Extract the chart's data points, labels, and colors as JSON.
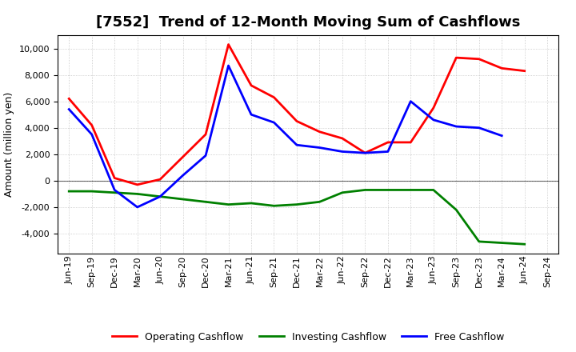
{
  "title": "[7552]  Trend of 12-Month Moving Sum of Cashflows",
  "ylabel": "Amount (million yen)",
  "x_labels": [
    "Jun-19",
    "Sep-19",
    "Dec-19",
    "Mar-20",
    "Jun-20",
    "Sep-20",
    "Dec-20",
    "Mar-21",
    "Jun-21",
    "Sep-21",
    "Dec-21",
    "Mar-22",
    "Jun-22",
    "Sep-22",
    "Dec-22",
    "Mar-23",
    "Jun-23",
    "Sep-23",
    "Dec-23",
    "Mar-24",
    "Jun-24",
    "Sep-24"
  ],
  "operating": [
    6200,
    4200,
    200,
    -300,
    100,
    1800,
    3500,
    10300,
    7200,
    6300,
    4500,
    3700,
    3200,
    2100,
    2900,
    2900,
    5500,
    9300,
    9200,
    8500,
    8300,
    null
  ],
  "investing": [
    -800,
    -800,
    -900,
    -1000,
    -1200,
    -1400,
    -1600,
    -1800,
    -1700,
    -1900,
    -1800,
    -1600,
    -900,
    -700,
    -700,
    -700,
    -700,
    -2200,
    -4600,
    -4700,
    -4800,
    null
  ],
  "free": [
    5400,
    3500,
    -700,
    -2000,
    -1200,
    400,
    1900,
    8700,
    5000,
    4400,
    2700,
    2500,
    2200,
    2100,
    2200,
    6000,
    4600,
    4100,
    4000,
    3400,
    null,
    null
  ],
  "operating_color": "#ff0000",
  "investing_color": "#008000",
  "free_color": "#0000ff",
  "ylim": [
    -5500,
    11000
  ],
  "yticks": [
    -4000,
    -2000,
    0,
    2000,
    4000,
    6000,
    8000,
    10000
  ],
  "background_color": "#ffffff",
  "grid_color": "#aaaaaa",
  "linewidth": 2.0,
  "title_fontsize": 13,
  "ylabel_fontsize": 9,
  "tick_fontsize": 8,
  "legend_fontsize": 9
}
